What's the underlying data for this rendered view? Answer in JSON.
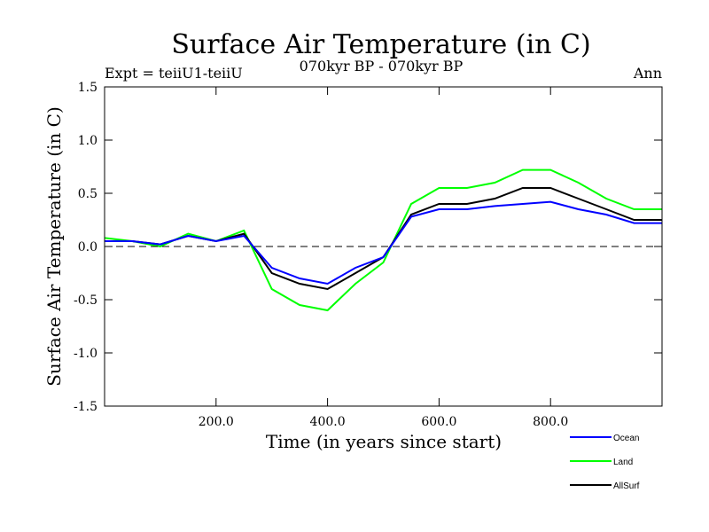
{
  "chart_data": {
    "type": "line",
    "title": "Surface Air Temperature (in C)",
    "subtitle": "070kyr BP - 070kyr BP",
    "left_label": "Expt = teiiU1-teiiU",
    "right_label": "Ann",
    "xlabel": "Time (in years since start)",
    "ylabel": "Surface Air Temperature (in C)",
    "xlim": [
      0,
      1000
    ],
    "ylim": [
      -1.5,
      1.5
    ],
    "x_ticks": [
      200,
      400,
      600,
      800
    ],
    "x_tick_labels": [
      "200.0",
      "400.0",
      "600.0",
      "800.0"
    ],
    "y_ticks": [
      -1.5,
      -1.0,
      -0.5,
      0.0,
      0.5,
      1.0,
      1.5
    ],
    "y_tick_labels": [
      "-1.5",
      "-1.0",
      "-0.5",
      "0.0",
      "0.5",
      "1.0",
      "1.5"
    ],
    "zero_line": "dashed",
    "grid": false,
    "legend_position": "bottom-right",
    "x": [
      0,
      50,
      100,
      150,
      200,
      250,
      300,
      350,
      400,
      450,
      500,
      550,
      600,
      650,
      700,
      750,
      800,
      850,
      900,
      950,
      1000
    ],
    "series": [
      {
        "name": "Land",
        "color": "#00ff00",
        "values": [
          0.08,
          0.05,
          0.0,
          0.12,
          0.05,
          0.15,
          -0.4,
          -0.55,
          -0.6,
          -0.35,
          -0.15,
          0.4,
          0.55,
          0.55,
          0.6,
          0.72,
          0.72,
          0.6,
          0.45,
          0.35,
          0.35
        ]
      },
      {
        "name": "AllSurf",
        "color": "#000000",
        "values": [
          0.05,
          0.05,
          0.02,
          0.1,
          0.05,
          0.12,
          -0.25,
          -0.35,
          -0.4,
          -0.25,
          -0.1,
          0.3,
          0.4,
          0.4,
          0.45,
          0.55,
          0.55,
          0.45,
          0.35,
          0.25,
          0.25
        ]
      },
      {
        "name": "Ocean",
        "color": "#0000ff",
        "values": [
          0.05,
          0.05,
          0.02,
          0.1,
          0.05,
          0.1,
          -0.2,
          -0.3,
          -0.35,
          -0.2,
          -0.1,
          0.28,
          0.35,
          0.35,
          0.38,
          0.4,
          0.42,
          0.35,
          0.3,
          0.22,
          0.22
        ]
      }
    ]
  }
}
